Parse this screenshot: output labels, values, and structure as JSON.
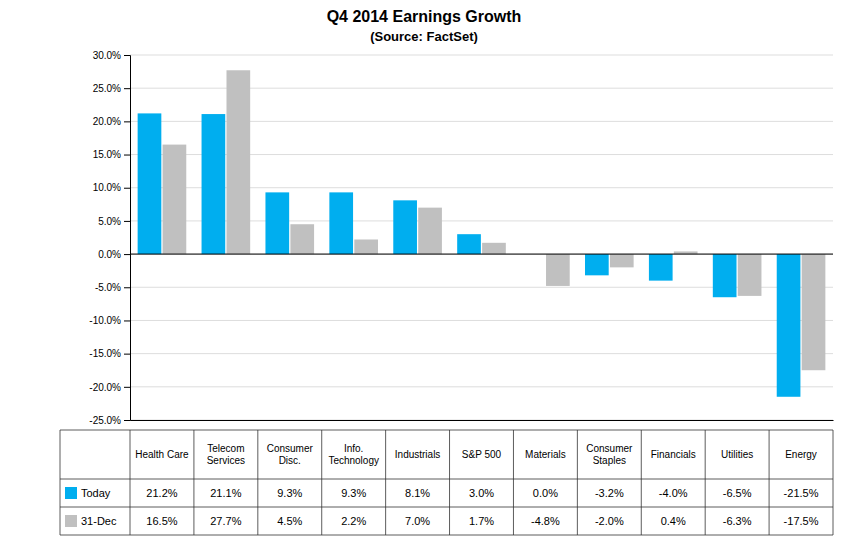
{
  "chart_data": {
    "type": "bar",
    "title": "Q4 2014 Earnings Growth",
    "subtitle": "(Source: FactSet)",
    "categories": [
      "Health Care",
      "Telecom\nServices",
      "Consumer\nDisc.",
      "Info.\nTechnology",
      "Industrials",
      "S&P 500",
      "Materials",
      "Consumer\nStaples",
      "Financials",
      "Utilities",
      "Energy"
    ],
    "series": [
      {
        "name": "Today",
        "color": "#00AEEF",
        "values": [
          21.2,
          21.1,
          9.3,
          9.3,
          8.1,
          3.0,
          0.0,
          -3.2,
          -4.0,
          -6.5,
          -21.5
        ],
        "value_labels": [
          "21.2%",
          "21.1%",
          "9.3%",
          "9.3%",
          "8.1%",
          "3.0%",
          "0.0%",
          "-3.2%",
          "-4.0%",
          "-6.5%",
          "-21.5%"
        ]
      },
      {
        "name": "31-Dec",
        "color": "#C0C0C0",
        "values": [
          16.5,
          27.7,
          4.5,
          2.2,
          7.0,
          1.7,
          -4.8,
          -2.0,
          0.4,
          -6.3,
          -17.5
        ],
        "value_labels": [
          "16.5%",
          "27.7%",
          "4.5%",
          "2.2%",
          "7.0%",
          "1.7%",
          "-4.8%",
          "-2.0%",
          "0.4%",
          "-6.3%",
          "-17.5%"
        ]
      }
    ],
    "ylim": [
      -25.0,
      30.0
    ],
    "yticks": [
      {
        "value": -25.0,
        "label": "-25.0%"
      },
      {
        "value": -20.0,
        "label": "-20.0%"
      },
      {
        "value": -15.0,
        "label": "-15.0%"
      },
      {
        "value": -10.0,
        "label": "-10.0%"
      },
      {
        "value": -5.0,
        "label": "-5.0%"
      },
      {
        "value": 0.0,
        "label": "0.0%"
      },
      {
        "value": 5.0,
        "label": "5.0%"
      },
      {
        "value": 10.0,
        "label": "10.0%"
      },
      {
        "value": 15.0,
        "label": "15.0%"
      },
      {
        "value": 20.0,
        "label": "20.0%"
      },
      {
        "value": 25.0,
        "label": "25.0%"
      },
      {
        "value": 30.0,
        "label": "30.0%"
      }
    ],
    "grid": true
  }
}
